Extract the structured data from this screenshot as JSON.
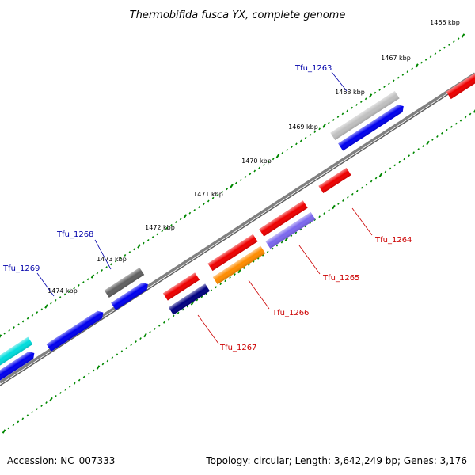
{
  "title": "Thermobifida fusca YX, complete genome",
  "accession": "Accession: NC_007333",
  "topology": "Topology: circular; Length: 3,642,249 bp; Genes: 3,176",
  "ticks": [
    {
      "id": "1466",
      "label": "1466 kbp"
    },
    {
      "id": "1467",
      "label": "1467 kbp"
    },
    {
      "id": "1468",
      "label": "1468 kbp"
    },
    {
      "id": "1469",
      "label": "1469 kbp"
    },
    {
      "id": "1470",
      "label": "1470 kbp"
    },
    {
      "id": "1471",
      "label": "1471 kbp"
    },
    {
      "id": "1472",
      "label": "1472 kbp"
    },
    {
      "id": "1473",
      "label": "1473 kbp"
    },
    {
      "id": "1474",
      "label": "1474 kbp"
    }
  ],
  "gene_labels": {
    "tfu_1263": "Tfu_1263",
    "tfu_1264": "Tfu_1264",
    "tfu_1265": "Tfu_1265",
    "tfu_1266": "Tfu_1266",
    "tfu_1267": "Tfu_1267",
    "tfu_1268": "Tfu_1268",
    "tfu_1269": "Tfu_1269"
  },
  "colors": {
    "red": "#ee0000",
    "blue": "#0000ee",
    "navy": "#000080",
    "orange": "#ff8c00",
    "slate": "#7b68ee",
    "silver": "#c0c0c0",
    "gray": "#606060",
    "cyan": "#00dddd",
    "backbone": "#808080",
    "tick_green": "#008800"
  }
}
